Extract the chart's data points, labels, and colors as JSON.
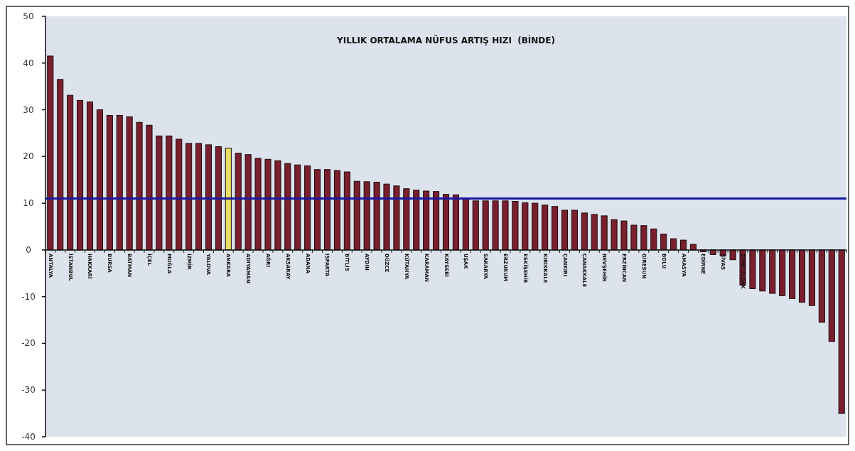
{
  "chart_data": {
    "type": "bar",
    "title": "YILLIK ORTALAMA NÜFUS ARTIŞ HIZI  (BİNDE)",
    "categories": [
      "ANTALYA",
      null,
      "İSTANBUL",
      null,
      "HAKKARİ",
      null,
      "BURSA",
      null,
      "BATMAN",
      null,
      "İÇEL",
      null,
      "MUĞLA",
      null,
      "İZMİR",
      null,
      "YALOVA",
      null,
      "ANKARA",
      null,
      "ADIYAMAN",
      null,
      "AĞRI",
      null,
      "AKSARAY",
      null,
      "ADANA",
      null,
      "ISPARTA",
      null,
      "BİTLİS",
      null,
      "AYDIN",
      null,
      "DÜZCE",
      null,
      "KÜTAHYA",
      null,
      "KARAMAN",
      null,
      "KAYSERİ",
      null,
      "UŞAK",
      null,
      "SAKARYA",
      null,
      "ERZURUM",
      null,
      "ESKİŞEHİR",
      null,
      "KIRIKKALE",
      null,
      "ÇANKIRI",
      null,
      "ÇANAKKALE",
      null,
      "NEVŞEHİR",
      null,
      "ERZİNCAN",
      null,
      "GİRESUN",
      null,
      "BOLU",
      null,
      "AMASYA",
      null,
      "EDİRNE",
      null,
      "SİVAS",
      null,
      "ZONGULDAK",
      null,
      null,
      null,
      null,
      null,
      null,
      null,
      null,
      null,
      null
    ],
    "values": [
      41.5,
      36.5,
      33.1,
      32.0,
      31.7,
      30.0,
      28.8,
      28.8,
      28.5,
      27.3,
      26.7,
      24.4,
      24.4,
      23.7,
      22.8,
      22.8,
      22.5,
      22.1,
      21.8,
      20.7,
      20.4,
      19.6,
      19.4,
      19.1,
      18.5,
      18.2,
      18.0,
      17.2,
      17.2,
      17.0,
      16.7,
      14.7,
      14.6,
      14.5,
      14.1,
      13.7,
      13.1,
      12.8,
      12.6,
      12.5,
      11.9,
      11.8,
      11.1,
      10.5,
      10.5,
      10.5,
      10.5,
      10.4,
      10.1,
      10.0,
      9.6,
      9.3,
      8.5,
      8.5,
      7.9,
      7.6,
      7.3,
      6.5,
      6.2,
      5.3,
      5.2,
      4.5,
      3.4,
      2.4,
      2.1,
      1.2,
      -0.4,
      -1.0,
      -1.3,
      -2.1,
      -7.5,
      -8.3,
      -8.8,
      -9.3,
      -9.8,
      -10.4,
      -11.2,
      -11.9,
      -15.5,
      -19.6,
      -35.0
    ],
    "colors": [
      "#7a1f2e",
      "#7a1f2e",
      "#7a1f2e",
      "#7a1f2e",
      "#7a1f2e",
      "#7a1f2e",
      "#7a1f2e",
      "#7a1f2e",
      "#7a1f2e",
      "#7a1f2e",
      "#7a1f2e",
      "#7a1f2e",
      "#7a1f2e",
      "#7a1f2e",
      "#7a1f2e",
      "#7a1f2e",
      "#7a1f2e",
      "#7a1f2e",
      "#e8e060",
      "#7a1f2e",
      "#7a1f2e",
      "#7a1f2e",
      "#7a1f2e",
      "#7a1f2e",
      "#7a1f2e",
      "#7a1f2e",
      "#7a1f2e",
      "#7a1f2e",
      "#7a1f2e",
      "#7a1f2e",
      "#7a1f2e",
      "#7a1f2e",
      "#7a1f2e",
      "#7a1f2e",
      "#7a1f2e",
      "#7a1f2e",
      "#7a1f2e",
      "#7a1f2e",
      "#7a1f2e",
      "#7a1f2e",
      "#7a1f2e",
      "#7a1f2e",
      "#7a1f2e",
      "#7a1f2e",
      "#7a1f2e",
      "#7a1f2e",
      "#7a1f2e",
      "#7a1f2e",
      "#7a1f2e",
      "#7a1f2e",
      "#7a1f2e",
      "#7a1f2e",
      "#7a1f2e",
      "#7a1f2e",
      "#7a1f2e",
      "#7a1f2e",
      "#7a1f2e",
      "#7a1f2e",
      "#7a1f2e",
      "#7a1f2e",
      "#7a1f2e",
      "#7a1f2e",
      "#7a1f2e",
      "#7a1f2e",
      "#7a1f2e",
      "#7a1f2e",
      "#7a1f2e",
      "#7a1f2e",
      "#7a1f2e",
      "#7a1f2e",
      "#7a1f2e",
      "#7a1f2e",
      "#7a1f2e",
      "#7a1f2e",
      "#7a1f2e",
      "#7a1f2e",
      "#7a1f2e",
      "#7a1f2e",
      "#7a1f2e",
      "#7a1f2e",
      "#7a1f2e"
    ],
    "ylim": [
      -40,
      50
    ],
    "yticks": [
      -40,
      -30,
      -20,
      -10,
      0,
      10,
      20,
      30,
      40,
      50
    ],
    "ref_lines": [
      {
        "axis": "y",
        "value": 11,
        "color": "#1a1aa0"
      }
    ],
    "grid": false
  }
}
